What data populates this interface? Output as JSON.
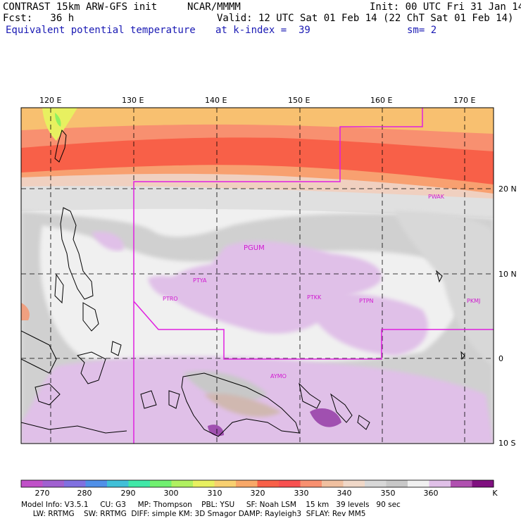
{
  "header": {
    "title": "CONTRAST 15km ARW-GFS init",
    "org": "NCAR/MMMM",
    "init": "Init: 00 UTC Fri 31 Jan 14",
    "fcst": "Fcst:   36 h",
    "valid": "Valid: 12 UTC Sat 01 Feb 14 (22 ChT Sat 01 Feb 14)",
    "field": "Equivalent potential temperature",
    "level": "at k-index =  39",
    "smooth": "sm= 2"
  },
  "map": {
    "lon_labels": [
      "120 E",
      "130 E",
      "140 E",
      "150 E",
      "160 E",
      "170 E"
    ],
    "lat_labels": [
      "20 N",
      "10 N",
      "0",
      "10 S"
    ],
    "stations": [
      "PGUM",
      "PTYA",
      "PTRO",
      "PTKK",
      "PTPN",
      "PKMJ",
      "PWAK",
      "AYMO"
    ],
    "boundary_color": "#e020e0"
  },
  "colorbar": {
    "labels": [
      "270",
      "280",
      "290",
      "300",
      "310",
      "320",
      "330",
      "340",
      "350",
      "360"
    ],
    "unit": "K",
    "colors": [
      "#c050c8",
      "#a060d0",
      "#8070e0",
      "#5090e8",
      "#40c0d8",
      "#40e8a8",
      "#70f070",
      "#b0f060",
      "#e8f060",
      "#f8d070",
      "#f8a868",
      "#f86048",
      "#f85050",
      "#f89070",
      "#f0c0a0",
      "#f0d8c8",
      "#d8d8d8",
      "#c8c8c8",
      "#f0f0f0",
      "#e0c0e8",
      "#b050b0",
      "#801080"
    ]
  },
  "footer": {
    "line1": "Model Info: V3.5.1     CU: G3     MP: Thompson    PBL: YSU     SF: Noah LSM    15 km   39 levels   90 sec",
    "line2": "     LW: RRTMG    SW: RRTMG  DIFF: simple KM: 3D Smagor DAMP: Rayleigh3  SFLAY: Rev MM5"
  }
}
